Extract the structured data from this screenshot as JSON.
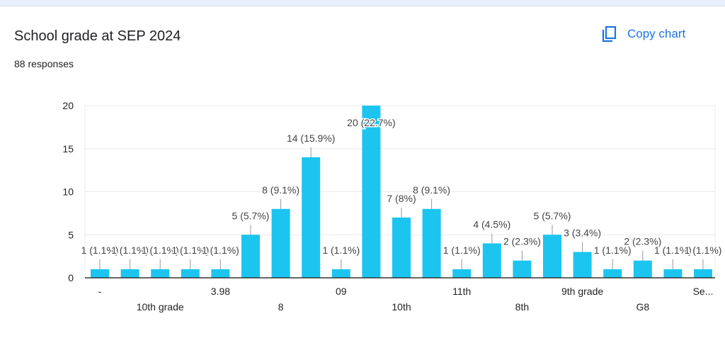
{
  "header": {
    "title": "School grade at SEP 2024",
    "responses": "88 responses",
    "copy_label": "Copy chart"
  },
  "colors": {
    "bar": "#1bc5f0",
    "accent": "#1a73e8"
  },
  "chart_data": {
    "type": "bar",
    "title": "School grade at SEP 2024",
    "ylim": [
      0,
      20
    ],
    "yticks": [
      0,
      5,
      10,
      15,
      20
    ],
    "grid": true,
    "categories": [
      "-",
      "",
      "10th grade",
      "",
      "3.98",
      "",
      "8",
      "",
      "09",
      "",
      "10th",
      "",
      "11th",
      "",
      "8th",
      "",
      "9th grade",
      "",
      "G8",
      "",
      "Se..."
    ],
    "values": [
      1,
      1,
      1,
      1,
      1,
      5,
      8,
      14,
      1,
      20,
      7,
      8,
      1,
      4,
      2,
      5,
      3,
      1,
      2,
      1,
      1
    ],
    "data_labels": [
      "1 (1.1%)",
      "1 (1.1%)",
      "1 (1.1%)",
      "1 (1.1%)",
      "1 (1.1%)",
      "5 (5.7%)",
      "8 (9.1%)",
      "14 (15.9%)",
      "1 (1.1%)",
      "20 (22.7%)",
      "7 (8%)",
      "8 (9.1%)",
      "1 (1.1%)",
      "4 (4.5%)",
      "2 (2.3%)",
      "5 (5.7%)",
      "3 (3.4%)",
      "1 (1.1%)",
      "2 (2.3%)",
      "1 (1.1%)",
      "1 (1.1%)"
    ]
  }
}
